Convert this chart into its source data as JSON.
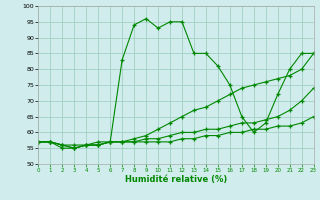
{
  "xlabel": "Humidité relative (%)",
  "background_color": "#d0ecec",
  "grid_color": "#99ccbb",
  "line_color": "#008800",
  "xlim": [
    0,
    23
  ],
  "ylim": [
    50,
    100
  ],
  "xticks": [
    0,
    1,
    2,
    3,
    4,
    5,
    6,
    7,
    8,
    9,
    10,
    11,
    12,
    13,
    14,
    15,
    16,
    17,
    18,
    19,
    20,
    21,
    22,
    23
  ],
  "yticks": [
    50,
    55,
    60,
    65,
    70,
    75,
    80,
    85,
    90,
    95,
    100
  ],
  "series": [
    {
      "x": [
        0,
        1,
        2,
        3,
        4,
        5,
        6,
        7,
        8,
        9,
        10,
        11,
        12,
        13,
        14,
        15,
        16,
        17,
        18,
        19,
        20,
        21,
        22,
        23
      ],
      "y": [
        57,
        57,
        55,
        55,
        56,
        56,
        57,
        83,
        94,
        96,
        93,
        95,
        95,
        85,
        85,
        81,
        75,
        65,
        60,
        63,
        72,
        80,
        85,
        85
      ]
    },
    {
      "x": [
        0,
        1,
        2,
        3,
        4,
        5,
        6,
        7,
        8,
        9,
        10,
        11,
        12,
        13,
        14,
        15,
        16,
        17,
        18,
        19,
        20,
        21,
        22,
        23
      ],
      "y": [
        57,
        57,
        56,
        56,
        56,
        57,
        57,
        57,
        58,
        59,
        61,
        63,
        65,
        67,
        68,
        70,
        72,
        74,
        75,
        76,
        77,
        78,
        80,
        85
      ]
    },
    {
      "x": [
        0,
        1,
        2,
        3,
        4,
        5,
        6,
        7,
        8,
        9,
        10,
        11,
        12,
        13,
        14,
        15,
        16,
        17,
        18,
        19,
        20,
        21,
        22,
        23
      ],
      "y": [
        57,
        57,
        56,
        55,
        56,
        56,
        57,
        57,
        57,
        58,
        58,
        59,
        60,
        60,
        61,
        61,
        62,
        63,
        63,
        64,
        65,
        67,
        70,
        74
      ]
    },
    {
      "x": [
        0,
        1,
        2,
        3,
        4,
        5,
        6,
        7,
        8,
        9,
        10,
        11,
        12,
        13,
        14,
        15,
        16,
        17,
        18,
        19,
        20,
        21,
        22,
        23
      ],
      "y": [
        57,
        57,
        56,
        55,
        56,
        56,
        57,
        57,
        57,
        57,
        57,
        57,
        58,
        58,
        59,
        59,
        60,
        60,
        61,
        61,
        62,
        62,
        63,
        65
      ]
    }
  ]
}
